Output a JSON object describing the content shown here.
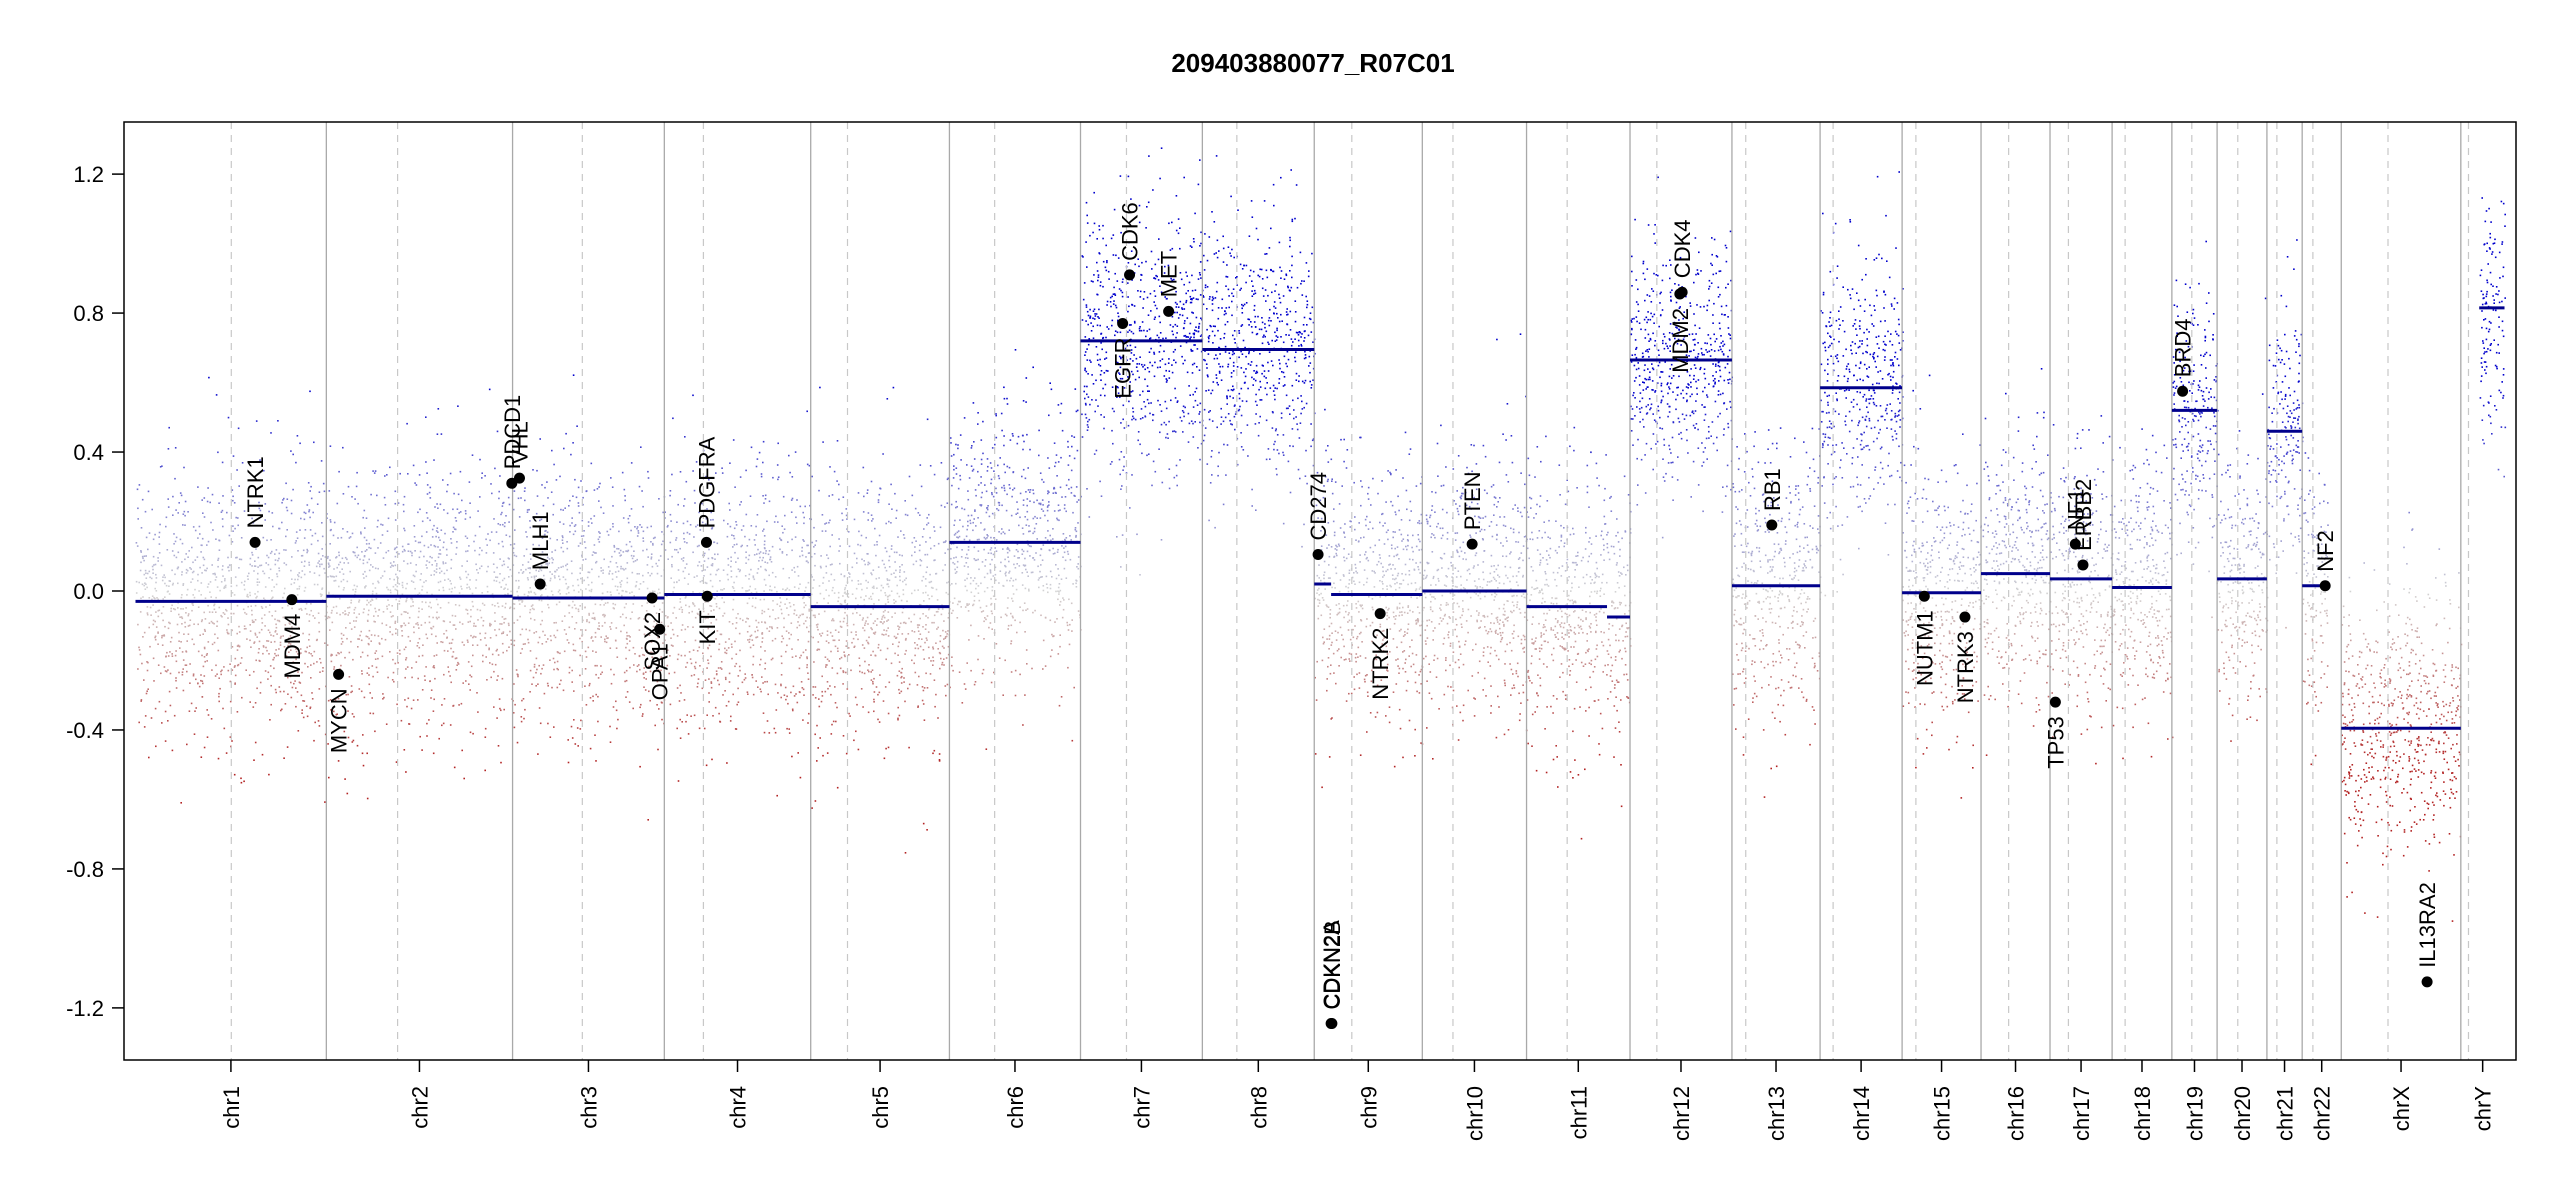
{
  "chart_data": {
    "type": "scatter",
    "title": "209403880077_R07C01",
    "xlabel": "",
    "ylabel": "",
    "ylim": [
      -1.35,
      1.35
    ],
    "y_ticks": [
      -1.2,
      -0.8,
      -0.4,
      0.0,
      0.4,
      0.8,
      1.2
    ],
    "y_tick_labels": [
      "-1.2",
      "-0.8",
      "-0.4",
      "0.0",
      "0.4",
      "0.8",
      "1.2"
    ],
    "chromosomes": [
      {
        "name": "chr1",
        "start": 0,
        "end": 249,
        "centromere": 125
      },
      {
        "name": "chr2",
        "start": 249,
        "end": 492,
        "centromere": 342
      },
      {
        "name": "chr3",
        "start": 492,
        "end": 690,
        "centromere": 583
      },
      {
        "name": "chr4",
        "start": 690,
        "end": 881,
        "centromere": 741
      },
      {
        "name": "chr5",
        "start": 881,
        "end": 1062,
        "centromere": 929
      },
      {
        "name": "chr6",
        "start": 1062,
        "end": 1233,
        "centromere": 1121
      },
      {
        "name": "chr7",
        "start": 1233,
        "end": 1392,
        "centromere": 1293
      },
      {
        "name": "chr8",
        "start": 1392,
        "end": 1538,
        "centromere": 1437
      },
      {
        "name": "chr9",
        "start": 1538,
        "end": 1679,
        "centromere": 1587
      },
      {
        "name": "chr10",
        "start": 1679,
        "end": 1815,
        "centromere": 1719
      },
      {
        "name": "chr11",
        "start": 1815,
        "end": 1950,
        "centromere": 1868
      },
      {
        "name": "chr12",
        "start": 1950,
        "end": 2083,
        "centromere": 1985
      },
      {
        "name": "chr13",
        "start": 2083,
        "end": 2198,
        "centromere": 2101
      },
      {
        "name": "chr14",
        "start": 2198,
        "end": 2305,
        "centromere": 2215
      },
      {
        "name": "chr15",
        "start": 2305,
        "end": 2408,
        "centromere": 2323
      },
      {
        "name": "chr16",
        "start": 2408,
        "end": 2498,
        "centromere": 2444
      },
      {
        "name": "chr17",
        "start": 2498,
        "end": 2579,
        "centromere": 2522
      },
      {
        "name": "chr18",
        "start": 2579,
        "end": 2657,
        "centromere": 2596
      },
      {
        "name": "chr19",
        "start": 2657,
        "end": 2716,
        "centromere": 2683
      },
      {
        "name": "chr20",
        "start": 2716,
        "end": 2781,
        "centromere": 2743
      },
      {
        "name": "chr21",
        "start": 2781,
        "end": 2827,
        "centromere": 2794
      },
      {
        "name": "chr22",
        "start": 2827,
        "end": 2878,
        "centromere": 2841
      },
      {
        "name": "chrX",
        "start": 2878,
        "end": 3034,
        "centromere": 2939
      },
      {
        "name": "chrY",
        "start": 3034,
        "end": 3091,
        "centromere": 3044
      }
    ],
    "x_range": [
      -15,
      3106
    ],
    "segments": [
      {
        "start": 0,
        "end": 249,
        "value": -0.03
      },
      {
        "start": 249,
        "end": 492,
        "value": -0.015
      },
      {
        "start": 492,
        "end": 690,
        "value": -0.02
      },
      {
        "start": 690,
        "end": 881,
        "value": -0.01
      },
      {
        "start": 881,
        "end": 1062,
        "value": -0.045
      },
      {
        "start": 1062,
        "end": 1233,
        "value": 0.14
      },
      {
        "start": 1233,
        "end": 1392,
        "value": 0.72
      },
      {
        "start": 1392,
        "end": 1538,
        "value": 0.695
      },
      {
        "start": 1538,
        "end": 1560,
        "value": 0.02
      },
      {
        "start": 1560,
        "end": 1679,
        "value": -0.01
      },
      {
        "start": 1679,
        "end": 1815,
        "value": 0.0
      },
      {
        "start": 1815,
        "end": 1920,
        "value": -0.045
      },
      {
        "start": 1920,
        "end": 1950,
        "value": -0.075
      },
      {
        "start": 1950,
        "end": 2083,
        "value": 0.665
      },
      {
        "start": 2083,
        "end": 2198,
        "value": 0.015
      },
      {
        "start": 2198,
        "end": 2305,
        "value": 0.585
      },
      {
        "start": 2305,
        "end": 2408,
        "value": -0.005
      },
      {
        "start": 2408,
        "end": 2498,
        "value": 0.05
      },
      {
        "start": 2498,
        "end": 2579,
        "value": 0.035
      },
      {
        "start": 2579,
        "end": 2657,
        "value": 0.01
      },
      {
        "start": 2657,
        "end": 2716,
        "value": 0.52
      },
      {
        "start": 2716,
        "end": 2781,
        "value": 0.035
      },
      {
        "start": 2781,
        "end": 2827,
        "value": 0.46
      },
      {
        "start": 2827,
        "end": 2860,
        "value": 0.015
      },
      {
        "start": 2878,
        "end": 3034,
        "value": -0.395
      },
      {
        "start": 3058,
        "end": 3091,
        "value": 0.815
      }
    ],
    "genes": [
      {
        "name": "NTRK1",
        "x": 156,
        "y": 0.14,
        "side": "above"
      },
      {
        "name": "MDM4",
        "x": 204,
        "y": -0.025,
        "side": "below"
      },
      {
        "name": "MYCN",
        "x": 265,
        "y": -0.24,
        "side": "below"
      },
      {
        "name": "PDCD1",
        "x": 491,
        "y": 0.31,
        "side": "above"
      },
      {
        "name": "VHL",
        "x": 501,
        "y": 0.325,
        "side": "above"
      },
      {
        "name": "MLH1",
        "x": 528,
        "y": 0.02,
        "side": "above"
      },
      {
        "name": "SOX2",
        "x": 674,
        "y": -0.02,
        "side": "below"
      },
      {
        "name": "OPA1",
        "x": 684,
        "y": -0.11,
        "side": "below"
      },
      {
        "name": "PDGFRA",
        "x": 745,
        "y": 0.14,
        "side": "above"
      },
      {
        "name": "KIT",
        "x": 746,
        "y": -0.015,
        "side": "below"
      },
      {
        "name": "EGFR",
        "x": 1288,
        "y": 0.77,
        "side": "below"
      },
      {
        "name": "CDK6",
        "x": 1297,
        "y": 0.91,
        "side": "above"
      },
      {
        "name": "MET",
        "x": 1348,
        "y": 0.805,
        "side": "above"
      },
      {
        "name": "CD274",
        "x": 1543,
        "y": 0.105,
        "side": "above"
      },
      {
        "name": "CDKN2A",
        "x": 1560,
        "y": -1.245,
        "side": "above"
      },
      {
        "name": "CDKN2B",
        "x": 1561,
        "y": -1.245,
        "side": "above"
      },
      {
        "name": "NTRK2",
        "x": 1624,
        "y": -0.065,
        "side": "below"
      },
      {
        "name": "PTEN",
        "x": 1744,
        "y": 0.135,
        "side": "above"
      },
      {
        "name": "MDM2",
        "x": 2015,
        "y": 0.855,
        "side": "below"
      },
      {
        "name": "CDK4",
        "x": 2018,
        "y": 0.86,
        "side": "above"
      },
      {
        "name": "RB1",
        "x": 2135,
        "y": 0.19,
        "side": "above"
      },
      {
        "name": "NUTM1",
        "x": 2334,
        "y": -0.015,
        "side": "below"
      },
      {
        "name": "NTRK3",
        "x": 2387,
        "y": -0.075,
        "side": "below"
      },
      {
        "name": "TP53",
        "x": 2505,
        "y": -0.32,
        "side": "below"
      },
      {
        "name": "NF1",
        "x": 2531,
        "y": 0.135,
        "side": "above"
      },
      {
        "name": "ERBB2",
        "x": 2541,
        "y": 0.075,
        "side": "above"
      },
      {
        "name": "BRD4",
        "x": 2671,
        "y": 0.575,
        "side": "above"
      },
      {
        "name": "NF2",
        "x": 2857,
        "y": 0.015,
        "side": "above"
      },
      {
        "name": "IL13RA2",
        "x": 2990,
        "y": -1.125,
        "side": "above"
      }
    ],
    "grid": false,
    "legend": "none"
  },
  "colors": {
    "segment": "#00008B",
    "gain": "#0000CD",
    "loss": "#B22222",
    "neutral": "#D3D3D3",
    "gene_point": "#000000"
  }
}
